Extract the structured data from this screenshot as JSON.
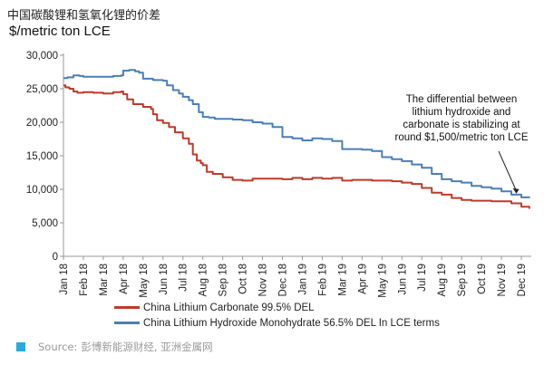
{
  "header": {
    "title": "中国碳酸锂和氢氧化锂的价差",
    "subtitle": "$/metric ton LCE"
  },
  "source": {
    "label": "Source:",
    "text": "彭博新能源财经, 亚洲金属网",
    "icon": "square-icon",
    "icon_color": "#29a9e0"
  },
  "chart_data": {
    "type": "line",
    "title": "中国碳酸锂和氢氧化锂的价差",
    "ylabel": "$/metric ton LCE",
    "xlabel": "",
    "ylim": [
      0,
      30000
    ],
    "y_ticks": [
      0,
      5000,
      10000,
      15000,
      20000,
      25000,
      30000
    ],
    "y_tick_labels": [
      "0",
      "5,000",
      "10,000",
      "15,000",
      "20,000",
      "25,000",
      "30,000"
    ],
    "x_tick_labels": [
      "Jan 18",
      "Feb 18",
      "Mar 18",
      "Apr 18",
      "May 18",
      "Jun 18",
      "Jul 18",
      "Aug 18",
      "Sep 18",
      "Oct 18",
      "Nov 18",
      "Dec 18",
      "Jan 19",
      "Feb 19",
      "Mar 19",
      "Apr 19",
      "May 19",
      "Jun 19",
      "Jul 19",
      "Aug 19",
      "Sep 19",
      "Oct 19",
      "Nov 19",
      "Dec 19"
    ],
    "grid": false,
    "legend_position": "bottom",
    "annotation": {
      "text": [
        "The differential between",
        "lithium hydroxide and",
        "carbonate is stabilizing at",
        "round $1,500/metric ton LCE"
      ],
      "points_to_x": 22.75,
      "points_to_y": 8800
    },
    "series": [
      {
        "name": "China Lithium Carbonate 99.5% DEL",
        "color": "#c0392b",
        "x": [
          0.0,
          0.1,
          0.3,
          0.5,
          0.7,
          1.0,
          1.5,
          2.0,
          2.5,
          2.9,
          3.0,
          3.2,
          3.5,
          4.0,
          4.4,
          4.5,
          4.7,
          5.0,
          5.3,
          5.6,
          6.0,
          6.3,
          6.5,
          6.7,
          6.9,
          7.0,
          7.2,
          7.5,
          7.8,
          8.0,
          8.5,
          9.0,
          9.5,
          10.0,
          10.5,
          11.0,
          11.5,
          12.0,
          12.5,
          13.0,
          13.5,
          14.0,
          14.5,
          15.0,
          15.5,
          16.0,
          16.5,
          17.0,
          17.5,
          18.0,
          18.5,
          19.0,
          19.5,
          20.0,
          20.5,
          21.0,
          21.5,
          22.0,
          22.5,
          23.0,
          23.4
        ],
        "values": [
          25500,
          25200,
          25000,
          24600,
          24400,
          24500,
          24400,
          24300,
          24500,
          24600,
          24200,
          23400,
          22700,
          22300,
          22000,
          21200,
          20300,
          19900,
          19300,
          18500,
          17600,
          16800,
          15200,
          14300,
          13900,
          13600,
          12600,
          12300,
          12300,
          11800,
          11400,
          11300,
          11600,
          11600,
          11600,
          11500,
          11700,
          11500,
          11700,
          11600,
          11700,
          11300,
          11400,
          11400,
          11300,
          11300,
          11200,
          11000,
          10800,
          10200,
          9500,
          9200,
          8700,
          8400,
          8300,
          8300,
          8200,
          8200,
          7900,
          7400,
          7100
        ]
      },
      {
        "name": "China Lithium Hydroxide Monohydrate 56.5% DEL In LCE terms",
        "color": "#4a7fb8",
        "x": [
          0.0,
          0.2,
          0.5,
          0.8,
          1.0,
          1.5,
          2.0,
          2.5,
          2.9,
          3.0,
          3.3,
          3.6,
          3.8,
          4.0,
          4.5,
          5.0,
          5.2,
          5.5,
          5.8,
          6.0,
          6.3,
          6.5,
          6.8,
          7.0,
          7.3,
          7.6,
          8.0,
          8.5,
          9.0,
          9.5,
          10.0,
          10.5,
          11.0,
          11.5,
          12.0,
          12.5,
          13.0,
          13.5,
          14.0,
          14.5,
          15.0,
          15.5,
          16.0,
          16.5,
          17.0,
          17.5,
          18.0,
          18.5,
          19.0,
          19.5,
          20.0,
          20.5,
          21.0,
          21.5,
          22.0,
          22.5,
          23.0,
          23.4
        ],
        "values": [
          26600,
          26700,
          27000,
          26900,
          26800,
          26800,
          26800,
          26900,
          27000,
          27700,
          27800,
          27600,
          27400,
          26500,
          26300,
          26200,
          25500,
          24800,
          24300,
          23800,
          23300,
          22700,
          21500,
          20800,
          20700,
          20500,
          20500,
          20400,
          20300,
          20000,
          19800,
          19300,
          17800,
          17600,
          17300,
          17600,
          17500,
          17200,
          16000,
          16000,
          15900,
          15700,
          14800,
          14500,
          14200,
          13700,
          13200,
          12300,
          11500,
          11200,
          11000,
          10500,
          10300,
          10100,
          9700,
          9200,
          8800,
          8700
        ]
      }
    ]
  }
}
